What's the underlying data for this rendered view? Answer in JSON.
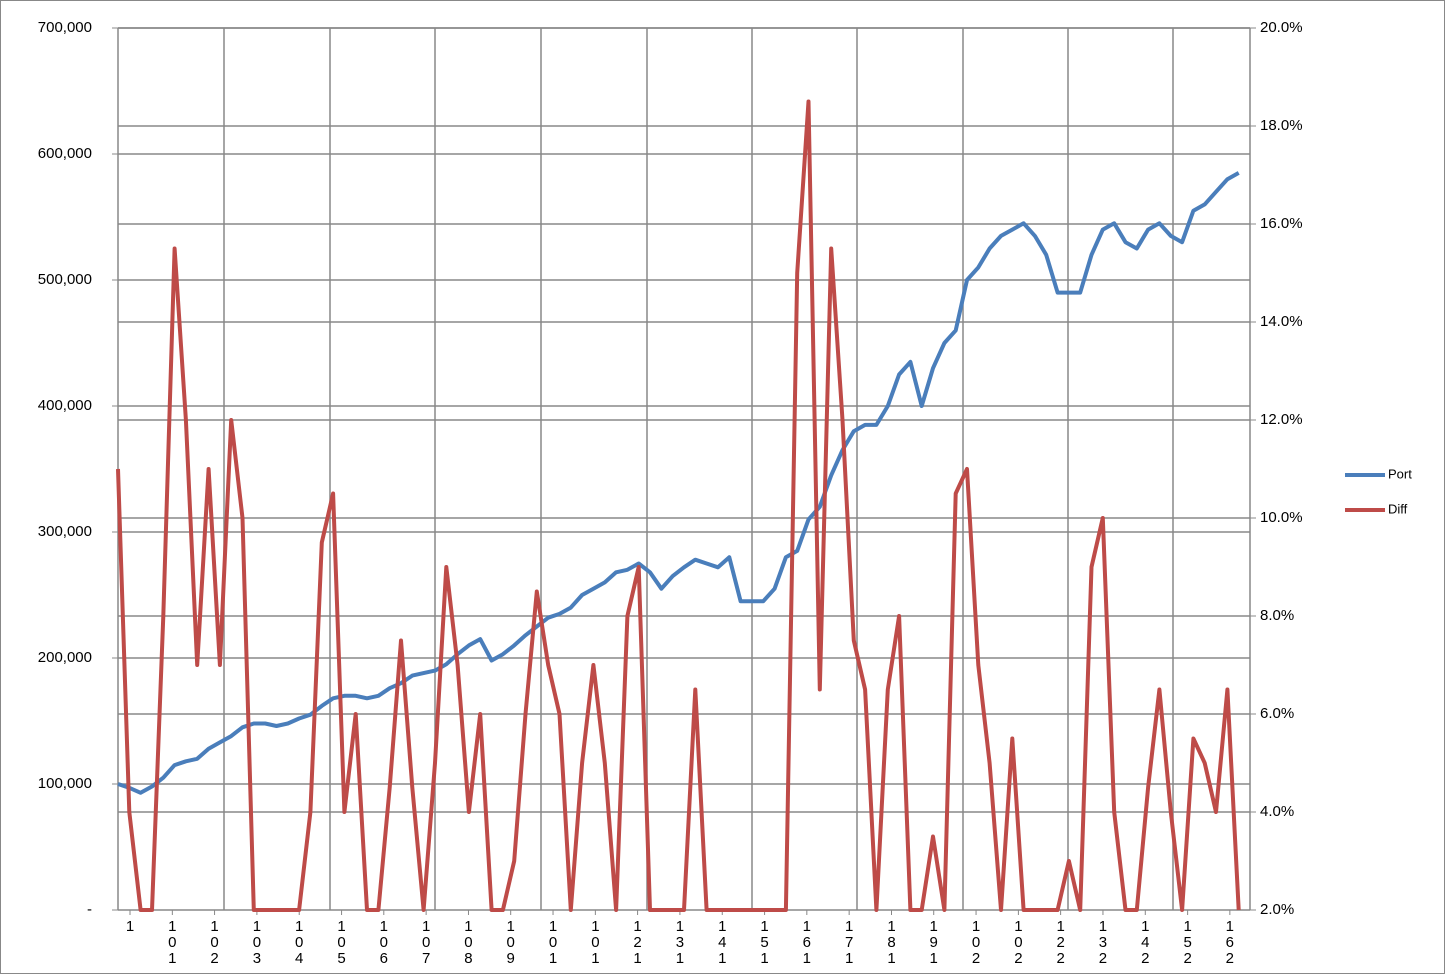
{
  "chart_data": {
    "type": "line",
    "x": [
      0,
      1,
      2,
      3,
      4,
      5,
      6,
      7,
      8,
      9,
      10,
      11,
      12,
      13,
      14,
      15,
      16,
      17,
      18,
      19,
      20,
      21,
      22,
      23,
      24,
      25,
      26,
      27,
      28,
      29,
      30,
      31,
      32,
      33,
      34,
      35,
      36,
      37,
      38,
      39,
      40,
      41,
      42,
      43,
      44,
      45,
      46,
      47,
      48,
      49,
      50,
      51,
      52,
      53,
      54,
      55,
      56,
      57,
      58,
      59,
      60,
      61,
      62,
      63,
      64,
      65,
      66,
      67,
      68,
      69,
      70,
      71,
      72,
      73,
      74,
      75,
      76,
      77,
      78,
      79,
      80,
      81,
      82,
      83,
      84,
      85,
      86,
      87,
      88,
      89,
      90,
      91,
      92,
      93,
      94,
      95,
      96,
      97,
      98,
      99
    ],
    "xlim": [
      0,
      100
    ],
    "xticks": [
      {
        "value": 1.06,
        "label": "1"
      },
      {
        "value": 4.8,
        "label": "101"
      },
      {
        "value": 8.53,
        "label": "102"
      },
      {
        "value": 12.27,
        "label": "103"
      },
      {
        "value": 16.01,
        "label": "104"
      },
      {
        "value": 19.75,
        "label": "105"
      },
      {
        "value": 23.48,
        "label": "106"
      },
      {
        "value": 27.22,
        "label": "107"
      },
      {
        "value": 30.96,
        "label": "108"
      },
      {
        "value": 34.69,
        "label": "109"
      },
      {
        "value": 38.43,
        "label": "101"
      },
      {
        "value": 42.17,
        "label": "101"
      },
      {
        "value": 45.9,
        "label": "121"
      },
      {
        "value": 49.64,
        "label": "131"
      },
      {
        "value": 53.38,
        "label": "141"
      },
      {
        "value": 57.12,
        "label": "151"
      },
      {
        "value": 60.85,
        "label": "161"
      },
      {
        "value": 64.59,
        "label": "171"
      },
      {
        "value": 68.33,
        "label": "181"
      },
      {
        "value": 72.06,
        "label": "191"
      },
      {
        "value": 75.8,
        "label": "102"
      },
      {
        "value": 79.54,
        "label": "102"
      },
      {
        "value": 83.27,
        "label": "122"
      },
      {
        "value": 87.01,
        "label": "132"
      },
      {
        "value": 90.75,
        "label": "142"
      },
      {
        "value": 94.49,
        "label": "152"
      },
      {
        "value": 98.22,
        "label": "162"
      }
    ],
    "ylim": [
      0,
      700000
    ],
    "yticks": [
      {
        "value": 0,
        "label": "-"
      },
      {
        "value": 100000,
        "label": "100,000"
      },
      {
        "value": 200000,
        "label": "200,000"
      },
      {
        "value": 300000,
        "label": "300,000"
      },
      {
        "value": 400000,
        "label": "400,000"
      },
      {
        "value": 500000,
        "label": "500,000"
      },
      {
        "value": 600000,
        "label": "600,000"
      },
      {
        "value": 700000,
        "label": "700,000"
      }
    ],
    "y2lim": [
      2,
      20
    ],
    "y2ticks": [
      {
        "value": 2,
        "label": "2.0%"
      },
      {
        "value": 4,
        "label": "4.0%"
      },
      {
        "value": 6,
        "label": "6.0%"
      },
      {
        "value": 8,
        "label": "8.0%"
      },
      {
        "value": 10,
        "label": "10.0%"
      },
      {
        "value": 12,
        "label": "12.0%"
      },
      {
        "value": 14,
        "label": "14.0%"
      },
      {
        "value": 16,
        "label": "16.0%"
      },
      {
        "value": 18,
        "label": "18.0%"
      },
      {
        "value": 20,
        "label": "20.0%"
      }
    ],
    "grid": true,
    "legend": "right",
    "series": [
      {
        "name": "Port",
        "color": "#4a7ebb",
        "values": [
          100000,
          97000,
          93000,
          98000,
          105000,
          115000,
          118000,
          120000,
          128000,
          133000,
          138000,
          145000,
          148000,
          148000,
          146000,
          148000,
          152000,
          155000,
          162000,
          168000,
          170000,
          170000,
          168000,
          170000,
          176000,
          180000,
          186000,
          188000,
          190000,
          195000,
          203000,
          210000,
          215000,
          198000,
          203000,
          210000,
          218000,
          225000,
          232000,
          235000,
          240000,
          250000,
          255000,
          260000,
          268000,
          270000,
          275000,
          268000,
          255000,
          265000,
          272000,
          278000,
          275000,
          272000,
          280000,
          245000,
          245000,
          245000,
          255000,
          280000,
          285000,
          310000,
          320000,
          345000,
          365000,
          380000,
          385000,
          385000,
          400000,
          425000,
          435000,
          400000,
          430000,
          450000,
          460000,
          500000,
          510000,
          525000,
          535000,
          540000,
          545000,
          535000,
          520000,
          490000,
          490000,
          490000,
          520000,
          540000,
          545000,
          530000,
          525000,
          540000,
          545000,
          535000,
          530000,
          555000,
          560000,
          570000,
          580000,
          585000
        ]
      },
      {
        "name": "Diff",
        "color": "#be4b48",
        "axis": "y2",
        "values": [
          11.0,
          4.0,
          2.0,
          2.0,
          8.0,
          15.5,
          12.0,
          7.0,
          11.0,
          7.0,
          12.0,
          10.0,
          2.0,
          2.0,
          2.0,
          2.0,
          2.0,
          4.0,
          9.5,
          10.5,
          4.0,
          6.0,
          2.0,
          2.0,
          4.5,
          7.5,
          4.5,
          2.0,
          5.0,
          9.0,
          7.0,
          4.0,
          6.0,
          2.0,
          2.0,
          3.0,
          6.0,
          8.5,
          7.0,
          6.0,
          2.0,
          5.0,
          7.0,
          5.0,
          2.0,
          8.0,
          9.0,
          2.0,
          2.0,
          2.0,
          2.0,
          6.5,
          2.0,
          2.0,
          2.0,
          2.0,
          2.0,
          2.0,
          2.0,
          2.0,
          15.0,
          18.5,
          6.5,
          15.5,
          12.0,
          7.5,
          6.5,
          2.0,
          6.5,
          8.0,
          2.0,
          2.0,
          3.5,
          2.0,
          10.5,
          11.0,
          7.0,
          5.0,
          2.0,
          5.5,
          2.0,
          2.0,
          2.0,
          2.0,
          3.0,
          2.0,
          9.0,
          10.0,
          4.0,
          2.0,
          2.0,
          4.5,
          6.5,
          4.0,
          2.0,
          5.5,
          5.0,
          4.0,
          6.5,
          2.0
        ]
      }
    ]
  }
}
